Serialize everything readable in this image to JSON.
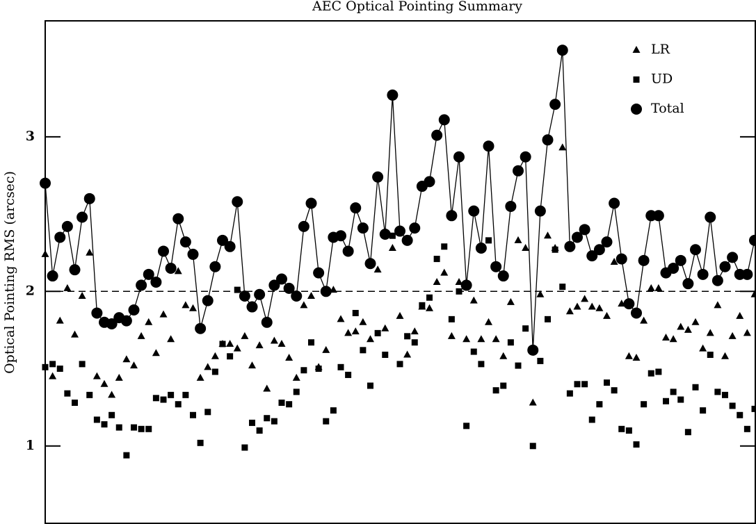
{
  "chart_data": {
    "type": "scatter",
    "title": "AEC Optical Pointing Summary",
    "y_label": "Optical Pointing RMS (arcsec)",
    "categories": [
      null,
      null,
      null,
      null,
      null,
      null,
      null,
      null,
      null,
      null,
      null,
      null,
      null,
      null,
      null,
      null,
      null,
      null,
      null,
      null,
      null,
      null,
      null,
      null,
      null,
      null,
      null,
      null,
      null,
      null,
      null,
      null,
      null,
      null,
      null,
      null,
      null,
      null,
      null,
      null,
      null,
      null,
      null,
      null,
      null,
      null,
      null,
      null,
      null,
      null,
      null,
      null,
      null,
      null,
      null,
      null,
      null,
      null,
      null,
      null,
      null,
      null,
      null,
      null,
      null,
      null,
      null,
      null,
      null,
      null,
      null,
      null,
      null,
      null,
      null,
      null,
      null,
      null,
      null,
      null,
      null,
      null,
      null,
      null,
      null,
      null,
      null,
      null,
      null,
      null,
      null,
      null,
      null,
      null,
      null,
      null,
      null
    ],
    "ylim": [
      0.5,
      3.75
    ],
    "yticks": [
      1,
      2,
      3
    ],
    "reference_line": 2,
    "legend": "upper right",
    "series": [
      {
        "name": "LR",
        "color": "#000000",
        "marker": "triangle",
        "line": false,
        "values": [
          2.24,
          1.45,
          1.81,
          2.02,
          1.72,
          1.97,
          2.25,
          1.45,
          1.4,
          1.33,
          1.44,
          1.56,
          1.52,
          1.71,
          1.8,
          1.6,
          1.85,
          1.69,
          2.13,
          1.91,
          1.89,
          1.44,
          1.51,
          1.58,
          1.66,
          1.66,
          1.63,
          1.71,
          1.52,
          1.65,
          1.37,
          1.68,
          1.66,
          1.57,
          1.44,
          1.91,
          1.97,
          1.51,
          1.62,
          2.01,
          1.82,
          1.73,
          1.74,
          1.8,
          1.69,
          2.14,
          1.76,
          2.28,
          1.84,
          1.59,
          1.74,
          1.9,
          1.89,
          2.06,
          2.12,
          1.71,
          2.06,
          1.69,
          1.94,
          1.69,
          1.8,
          1.69,
          1.58,
          1.93,
          2.33,
          2.28,
          1.28,
          1.98,
          2.36,
          2.28,
          2.93,
          1.87,
          1.9,
          1.95,
          1.9,
          1.89,
          1.84,
          2.19,
          1.92,
          1.58,
          1.57,
          1.81,
          2.02,
          2.02,
          1.7,
          1.69,
          1.77,
          1.75,
          1.8,
          1.63,
          1.73,
          1.91,
          1.58,
          1.71,
          1.84,
          1.73,
          1.98
        ]
      },
      {
        "name": "UD",
        "color": "#000000",
        "marker": "square",
        "line": false,
        "values": [
          1.51,
          1.53,
          1.5,
          1.34,
          1.28,
          1.53,
          1.33,
          1.17,
          1.14,
          1.2,
          1.12,
          0.94,
          1.12,
          1.11,
          1.11,
          1.31,
          1.3,
          1.33,
          1.27,
          1.33,
          1.2,
          1.02,
          1.22,
          1.48,
          1.66,
          1.58,
          2.01,
          0.99,
          1.15,
          1.1,
          1.18,
          1.16,
          1.28,
          1.27,
          1.35,
          1.49,
          1.67,
          1.5,
          1.16,
          1.23,
          1.51,
          1.46,
          1.86,
          1.62,
          1.39,
          1.73,
          1.59,
          2.36,
          1.53,
          1.71,
          1.67,
          1.91,
          1.96,
          2.21,
          2.29,
          1.82,
          2.0,
          1.13,
          1.61,
          1.53,
          2.33,
          1.36,
          1.39,
          1.67,
          1.52,
          1.76,
          1.0,
          1.55,
          1.82,
          2.27,
          2.03,
          1.34,
          1.4,
          1.4,
          1.17,
          1.27,
          1.41,
          1.36,
          1.11,
          1.1,
          1.01,
          1.27,
          1.47,
          1.48,
          1.29,
          1.35,
          1.3,
          1.09,
          1.38,
          1.23,
          1.59,
          1.35,
          1.33,
          1.26,
          1.2,
          1.11,
          1.24
        ]
      },
      {
        "name": "Total",
        "color": "#000000",
        "marker": "circle",
        "line": true,
        "values": [
          2.7,
          2.1,
          2.35,
          2.42,
          2.14,
          2.48,
          2.6,
          1.86,
          1.8,
          1.79,
          1.83,
          1.81,
          1.88,
          2.04,
          2.11,
          2.06,
          2.26,
          2.15,
          2.47,
          2.32,
          2.24,
          1.76,
          1.94,
          2.16,
          2.33,
          2.29,
          2.58,
          1.97,
          1.9,
          1.98,
          1.8,
          2.04,
          2.08,
          2.02,
          1.97,
          2.42,
          2.57,
          2.12,
          2.0,
          2.35,
          2.36,
          2.26,
          2.54,
          2.41,
          2.18,
          2.74,
          2.37,
          3.27,
          2.39,
          2.33,
          2.41,
          2.68,
          2.71,
          3.01,
          3.11,
          2.49,
          2.87,
          2.04,
          2.52,
          2.28,
          2.94,
          2.16,
          2.1,
          2.55,
          2.78,
          2.87,
          1.62,
          2.52,
          2.98,
          3.21,
          3.56,
          2.29,
          2.35,
          2.4,
          2.23,
          2.27,
          2.32,
          2.57,
          2.21,
          1.92,
          1.86,
          2.2,
          2.49,
          2.49,
          2.12,
          2.15,
          2.2,
          2.05,
          2.27,
          2.11,
          2.48,
          2.07,
          2.16,
          2.22,
          2.11,
          2.11,
          2.33
        ]
      }
    ]
  }
}
